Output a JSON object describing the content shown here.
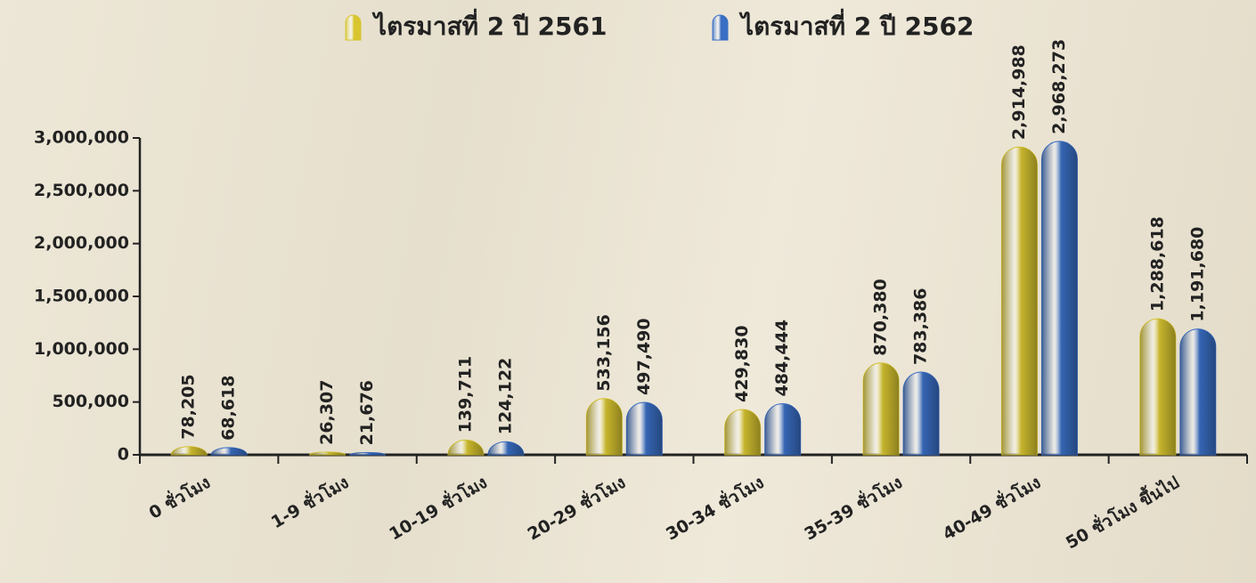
{
  "chart_data": {
    "type": "bar",
    "categories": [
      "0 ชั่วโมง",
      "1-9 ชั่วโมง",
      "10-19 ชั่วโมง",
      "20-29 ชั่วโมง",
      "30-34 ชั่วโมง",
      "35-39 ชั่วโมง",
      "40-49 ชั่วโมง",
      "50 ชั่วโมง ขึ้นไป"
    ],
    "series": [
      {
        "name": "ไตรมาสที่ 2 ปี 2561",
        "color": "#d8c530",
        "values": [
          78205,
          26307,
          139711,
          533156,
          429830,
          870380,
          2914988,
          1288618
        ],
        "value_labels": [
          "78,205",
          "26,307",
          "139,711",
          "533,156",
          "429,830",
          "870,380",
          "2,914,988",
          "1,288,618"
        ]
      },
      {
        "name": "ไตรมาสที่ 2 ปี 2562",
        "color": "#3a6ec4",
        "values": [
          68618,
          21676,
          124122,
          497490,
          484444,
          783386,
          2968273,
          1191680
        ],
        "value_labels": [
          "68,618",
          "21,676",
          "124,122",
          "497,490",
          "484,444",
          "783,386",
          "2,968,273",
          "1,191,680"
        ]
      }
    ],
    "ylim": [
      0,
      3000000
    ],
    "yticks": [
      0,
      {
        "value": 500000,
        "label": "500,000"
      },
      {
        "value": 1000000,
        "label": "1,000,000"
      },
      {
        "value": 1500000,
        "label": "1,500,000"
      },
      {
        "value": 2000000,
        "label": "2,000,000"
      },
      {
        "value": 2500000,
        "label": "2,500,000"
      },
      {
        "value": 3000000,
        "label": "3,000,000"
      }
    ],
    "grid": false,
    "legend": "top"
  }
}
